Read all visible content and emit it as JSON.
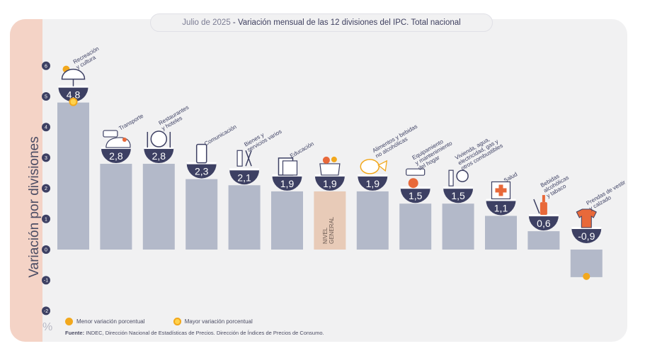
{
  "title": {
    "date": "Julio de 2025",
    "separator": " - ",
    "text": "Variación mensual de las 12 divisiones del IPC. Total nacional"
  },
  "y_axis_label": "Variación por divisiones",
  "unit_label": "%",
  "legend": {
    "min": "Menor variación porcentual",
    "max": "Mayor variación porcentual"
  },
  "source": {
    "label": "Fuente:",
    "text": "INDEC, Dirección Nacional de Estadísticas de Precios. Dirección de Índices de Precios de Consumo."
  },
  "colors": {
    "bar": "#b3b9c9",
    "general_bar": "#e8cbb8",
    "bubble": "#3d4063",
    "tick_circle": "#3d4063",
    "accent_orange": "#f2a81d",
    "icon_orange": "#e8693a",
    "left_panel": "#f4d3c6"
  },
  "chart_data": {
    "type": "bar",
    "ylim": [
      -2,
      6
    ],
    "yticks": [
      "-2",
      "-1",
      "0",
      "1",
      "2",
      "3",
      "4",
      "5",
      "6"
    ],
    "categories": [
      "Recreación y cultura",
      "Transporte",
      "Restaurantes y hoteles",
      "Comunicación",
      "Bienes y servicios varios",
      "Educación",
      "NIVEL GENERAL",
      "Alimentos y bebidas no alcohólicas",
      "Equipamiento y mantenimiento del hogar",
      "Vivienda, agua, electricidad, gas y otros combustibles",
      "Salud",
      "Bebidas alcohólicas y tabaco",
      "Prendas de vestir y calzado"
    ],
    "values": [
      4.8,
      2.8,
      2.8,
      2.3,
      2.1,
      1.9,
      1.9,
      1.9,
      1.5,
      1.5,
      1.1,
      0.6,
      -0.9
    ],
    "value_labels": [
      "4,8",
      "2,8",
      "2,8",
      "2,3",
      "2,1",
      "1,9",
      "1,9",
      "1,9",
      "1,5",
      "1,5",
      "1,1",
      "0,6",
      "-0,9"
    ],
    "category_label_lines": [
      [
        "Recreación",
        "y cultura"
      ],
      [
        "Transporte"
      ],
      [
        "Restaurantes",
        "y hoteles"
      ],
      [
        "Comunicación"
      ],
      [
        "Bienes y",
        "servicios varios"
      ],
      [
        "Educación"
      ],
      [],
      [
        "Alimentos y bebidas",
        "no alcohólicas"
      ],
      [
        "Equipamiento",
        "y mantenimiento",
        "del hogar"
      ],
      [
        "Vivienda, agua,",
        "electricidad, gas y",
        "otros combustibles"
      ],
      [
        "Salud"
      ],
      [
        "Bebidas",
        "alcohólicas",
        "y tabaco"
      ],
      [
        "Prendas de vestir",
        "y calzado"
      ]
    ],
    "general_index": 6,
    "general_label_lines": [
      "NIVEL",
      "GENERAL"
    ],
    "icons": [
      "umbrella-sun-icon",
      "car-bus-icon",
      "plate-cutlery-icon",
      "smartphone-icon",
      "comb-scissors-icon",
      "books-icon",
      "shopping-bag-icon",
      "chicken-vegetables-icon",
      "air-conditioner-icon",
      "bulb-faucet-icon",
      "first-aid-kit-icon",
      "wine-bottle-icon",
      "tshirt-icon"
    ],
    "max_index": 0,
    "min_index": 12,
    "legend_placement": "bottom-left"
  }
}
